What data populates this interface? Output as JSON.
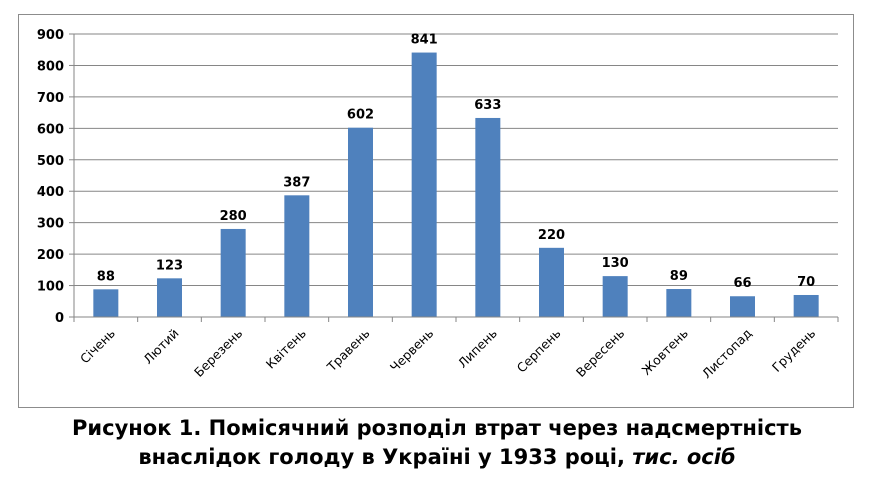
{
  "chart_data": {
    "type": "bar",
    "categories": [
      "Січень",
      "Лютий",
      "Березень",
      "Квітень",
      "Травень",
      "Червень",
      "Липень",
      "Серпень",
      "Вересень",
      "Жовтень",
      "Листопад",
      "Грудень"
    ],
    "values": [
      88,
      123,
      280,
      387,
      602,
      841,
      633,
      220,
      130,
      89,
      66,
      70
    ],
    "ylim": [
      0,
      900
    ],
    "yticks": [
      0,
      100,
      200,
      300,
      400,
      500,
      600,
      700,
      800,
      900
    ],
    "grid": true,
    "legend": "none",
    "bar_color": "#4f81bd",
    "grid_color": "#868686"
  },
  "caption": {
    "line1": "Рисунок 1. Помісячний розподіл втрат через надсмертність",
    "line2": "внаслідок голоду в Україні у 1933 році, ",
    "units": "тис. осіб"
  }
}
